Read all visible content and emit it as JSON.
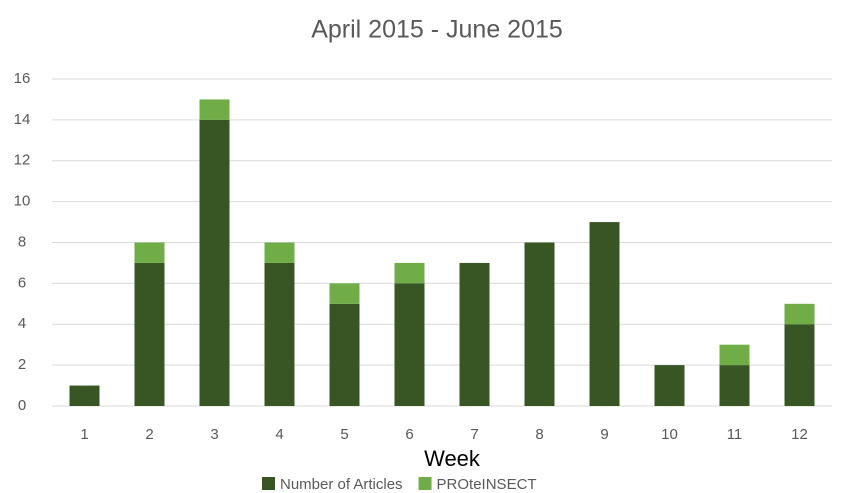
{
  "chart_data": {
    "type": "stacked_bar",
    "title": "April 2015 - June 2015",
    "x_label": "Week",
    "categories": [
      "1",
      "2",
      "3",
      "4",
      "5",
      "6",
      "7",
      "8",
      "9",
      "10",
      "11",
      "12"
    ],
    "series": [
      {
        "name": "Number of Articles",
        "color": "#375623",
        "values": [
          1,
          7,
          14,
          7,
          5,
          6,
          7,
          8,
          9,
          2,
          2,
          4
        ]
      },
      {
        "name": "PROteINSECT",
        "color": "#70ad47",
        "values": [
          0,
          1,
          1,
          1,
          1,
          1,
          0,
          0,
          0,
          0,
          1,
          1
        ]
      }
    ],
    "ylim": [
      0,
      16
    ],
    "yticks": [
      0,
      2,
      4,
      6,
      8,
      10,
      12,
      14,
      16
    ],
    "grid": true,
    "legend": "bottom"
  }
}
